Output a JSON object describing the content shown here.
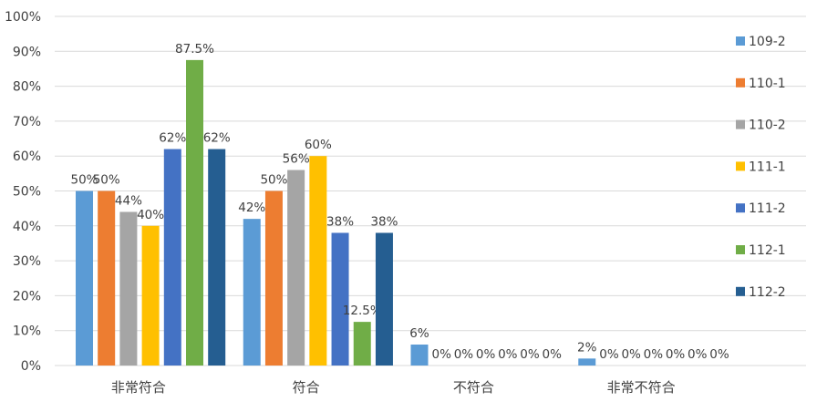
{
  "chart_data": {
    "type": "bar",
    "title": "",
    "xlabel": "",
    "ylabel": "",
    "ylim": [
      0,
      100
    ],
    "yticks": [
      0,
      10,
      20,
      30,
      40,
      50,
      60,
      70,
      80,
      90,
      100
    ],
    "ytick_labels": [
      "0%",
      "10%",
      "20%",
      "30%",
      "40%",
      "50%",
      "60%",
      "70%",
      "80%",
      "90%",
      "100%"
    ],
    "grid": true,
    "legend_position": "right",
    "categories": [
      "非常符合",
      "符合",
      "不符合",
      "非常不符合"
    ],
    "series": [
      {
        "name": "109-2",
        "color": "#5B9BD5",
        "values": [
          50,
          42,
          6,
          2
        ],
        "labels": [
          "50%",
          "42%",
          "6%",
          "2%"
        ]
      },
      {
        "name": "110-1",
        "color": "#ED7D31",
        "values": [
          50,
          50,
          0,
          0
        ],
        "labels": [
          "50%",
          "50%",
          "0%",
          "0%"
        ]
      },
      {
        "name": "110-2",
        "color": "#A5A5A5",
        "values": [
          44,
          56,
          0,
          0
        ],
        "labels": [
          "44%",
          "56%",
          "0%",
          "0%"
        ]
      },
      {
        "name": "111-1",
        "color": "#FFC000",
        "values": [
          40,
          60,
          0,
          0
        ],
        "labels": [
          "40%",
          "60%",
          "0%",
          "0%"
        ]
      },
      {
        "name": "111-2",
        "color": "#4472C4",
        "values": [
          62,
          38,
          0,
          0
        ],
        "labels": [
          "62%",
          "38%",
          "0%",
          "0%"
        ]
      },
      {
        "name": "112-1",
        "color": "#70AD47",
        "values": [
          87.5,
          12.5,
          0,
          0
        ],
        "labels": [
          "87.5%",
          "12.5%",
          "0%",
          "0%"
        ]
      },
      {
        "name": "112-2",
        "color": "#255E91",
        "values": [
          62,
          38,
          0,
          0
        ],
        "labels": [
          "62%",
          "38%",
          "0%",
          "0%"
        ]
      }
    ]
  },
  "colors": {
    "grid": "#D9D9D9",
    "text": "#404040"
  }
}
